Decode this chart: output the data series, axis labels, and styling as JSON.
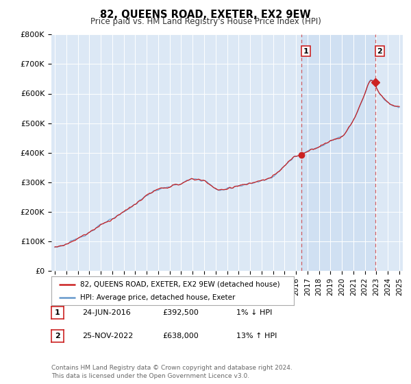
{
  "title": "82, QUEENS ROAD, EXETER, EX2 9EW",
  "subtitle": "Price paid vs. HM Land Registry's House Price Index (HPI)",
  "ylim": [
    0,
    800000
  ],
  "yticks": [
    0,
    100000,
    200000,
    300000,
    400000,
    500000,
    600000,
    700000,
    800000
  ],
  "ytick_labels": [
    "£0",
    "£100K",
    "£200K",
    "£300K",
    "£400K",
    "£500K",
    "£600K",
    "£700K",
    "£800K"
  ],
  "background_color": "#ffffff",
  "plot_bg_color": "#dce8f5",
  "plot_bg_color_shaded": "#c8dcf0",
  "grid_color": "#b0c8e0",
  "hpi_color": "#6699cc",
  "price_color": "#cc2222",
  "sale1_x": 2016.48,
  "sale1_y": 392500,
  "sale2_x": 2022.9,
  "sale2_y": 638000,
  "legend_entries": [
    {
      "label": "82, QUEENS ROAD, EXETER, EX2 9EW (detached house)",
      "color": "#cc2222"
    },
    {
      "label": "HPI: Average price, detached house, Exeter",
      "color": "#6699cc"
    }
  ],
  "table_rows": [
    {
      "num": "1",
      "date": "24-JUN-2016",
      "price": "£392,500",
      "change": "1% ↓ HPI"
    },
    {
      "num": "2",
      "date": "25-NOV-2022",
      "price": "£638,000",
      "change": "13% ↑ HPI"
    }
  ],
  "footer": "Contains HM Land Registry data © Crown copyright and database right 2024.\nThis data is licensed under the Open Government Licence v3.0.",
  "dashed_line_color": "#cc2222",
  "xlim_left": 1994.7,
  "xlim_right": 2025.3,
  "x_start_year": 1995,
  "x_end_year": 2025
}
